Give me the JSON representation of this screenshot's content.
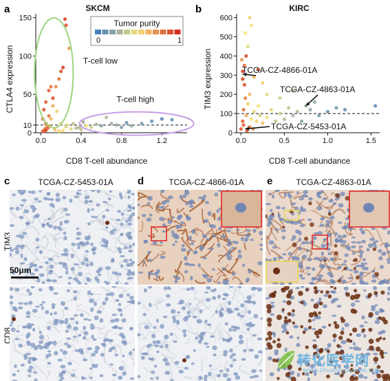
{
  "panels": {
    "a": {
      "letter": "a",
      "title": "SKCM",
      "ylabel": "CTLA4 expression",
      "xlabel": "CD8 T-cell abundance",
      "xticks": [
        "0.0",
        "0.4",
        "0.8",
        "1.2"
      ],
      "yticks": [
        "0",
        "10",
        "50",
        "100",
        "150"
      ],
      "legend_title": "Tumor purity",
      "legend_min": "0",
      "legend_max": "1",
      "label_low": "T-cell low",
      "label_high": "T-cell high"
    },
    "b": {
      "letter": "b",
      "title": "KIRC",
      "ylabel": "TIM3 expression",
      "xlabel": "CD8 T-cell abundance",
      "xticks": [
        "0.0",
        "0.5",
        "1.0",
        "1.5"
      ],
      "yticks": [
        "0",
        "100",
        "200",
        "300",
        "400",
        "500",
        "600"
      ],
      "ann1": "TCGA-CZ-4866-01A",
      "ann2": "TCGA-CZ-4863-01A",
      "ann3": "TCGA-CZ-5453-01A"
    },
    "c": {
      "letter": "c",
      "title": "TCGA-CZ-5453-01A",
      "scale": "50μm"
    },
    "d": {
      "letter": "d",
      "title": "TCGA-CZ-4866-01A"
    },
    "e": {
      "letter": "e",
      "title": "TCGA-CZ-4863-01A"
    },
    "rows": {
      "top": "TIM3",
      "bottom": "CD8"
    }
  },
  "colors": {
    "low": "#4a7fc0",
    "mid": "#f5e27a",
    "high": "#d7301f",
    "green_ellipse": "#9fd47f",
    "purple_ellipse": "#c79ee6"
  },
  "watermark": {
    "text": "转化医学网",
    "sub": "www.zhuanhuayixue.org"
  },
  "chart_data": [
    {
      "type": "scatter",
      "title": "SKCM",
      "xlabel": "CD8 T-cell abundance",
      "ylabel": "CTLA4 expression",
      "xlim": [
        -0.05,
        1.45
      ],
      "ylim": [
        0,
        155
      ],
      "threshold_y": 10,
      "points": [
        [
          0.02,
          2
        ],
        [
          0.04,
          5
        ],
        [
          0.05,
          12
        ],
        [
          0.06,
          8
        ],
        [
          0.03,
          30
        ],
        [
          0.05,
          40
        ],
        [
          0.08,
          22
        ],
        [
          0.1,
          18
        ],
        [
          0.12,
          45
        ],
        [
          0.15,
          60
        ],
        [
          0.18,
          70
        ],
        [
          0.2,
          80
        ],
        [
          0.22,
          85
        ],
        [
          0.24,
          148
        ],
        [
          0.25,
          140
        ],
        [
          0.28,
          110
        ],
        [
          0.1,
          60
        ],
        [
          0.08,
          55
        ],
        [
          0.12,
          35
        ],
        [
          0.16,
          28
        ],
        [
          0.2,
          12
        ],
        [
          0.25,
          8
        ],
        [
          0.3,
          5
        ],
        [
          0.35,
          6
        ],
        [
          0.4,
          4
        ],
        [
          0.45,
          9
        ],
        [
          0.5,
          7
        ],
        [
          0.55,
          11
        ],
        [
          0.6,
          9
        ],
        [
          0.7,
          12
        ],
        [
          0.75,
          10
        ],
        [
          0.8,
          7
        ],
        [
          0.85,
          13
        ],
        [
          0.9,
          9
        ],
        [
          1.0,
          12
        ],
        [
          1.1,
          15
        ],
        [
          1.2,
          18
        ],
        [
          1.3,
          17
        ],
        [
          0.65,
          20
        ],
        [
          0.05,
          3
        ],
        [
          0.07,
          6
        ],
        [
          0.09,
          9
        ],
        [
          0.14,
          4
        ],
        [
          0.18,
          2
        ],
        [
          0.22,
          3
        ],
        [
          0.26,
          10
        ],
        [
          0.32,
          12
        ],
        [
          0.38,
          7
        ],
        [
          0.42,
          14
        ],
        [
          0.02,
          18
        ]
      ],
      "purity": [
        0.9,
        0.8,
        0.85,
        0.7,
        0.9,
        0.85,
        0.8,
        0.6,
        0.9,
        0.75,
        0.8,
        0.9,
        0.95,
        0.95,
        0.9,
        0.7,
        0.8,
        0.85,
        0.65,
        0.55,
        0.5,
        0.4,
        0.45,
        0.3,
        0.35,
        0.5,
        0.4,
        0.3,
        0.2,
        0.25,
        0.2,
        0.15,
        0.1,
        0.2,
        0.15,
        0.1,
        0.05,
        0.1,
        0.3,
        0.95,
        0.85,
        0.7,
        0.6,
        0.55,
        0.5,
        0.45,
        0.35,
        0.3,
        0.25,
        0.8
      ]
    },
    {
      "type": "scatter",
      "title": "KIRC",
      "xlabel": "CD8 T-cell abundance",
      "ylabel": "TIM3 expression",
      "xlim": [
        -0.05,
        1.6
      ],
      "ylim": [
        0,
        620
      ],
      "threshold_y": 100,
      "points": [
        [
          0.0,
          20
        ],
        [
          0.02,
          60
        ],
        [
          0.03,
          120
        ],
        [
          0.05,
          180
        ],
        [
          0.04,
          250
        ],
        [
          0.02,
          320
        ],
        [
          0.01,
          380
        ],
        [
          0.06,
          90
        ],
        [
          0.08,
          150
        ],
        [
          0.1,
          200
        ],
        [
          0.12,
          70
        ],
        [
          0.15,
          110
        ],
        [
          0.18,
          60
        ],
        [
          0.2,
          140
        ],
        [
          0.22,
          90
        ],
        [
          0.25,
          50
        ],
        [
          0.3,
          80
        ],
        [
          0.35,
          120
        ],
        [
          0.4,
          60
        ],
        [
          0.45,
          100
        ],
        [
          0.5,
          70
        ],
        [
          0.55,
          130
        ],
        [
          0.6,
          90
        ],
        [
          0.65,
          110
        ],
        [
          0.7,
          60
        ],
        [
          0.75,
          140
        ],
        [
          0.8,
          120
        ],
        [
          0.9,
          90
        ],
        [
          1.0,
          110
        ],
        [
          1.1,
          130
        ],
        [
          1.2,
          120
        ],
        [
          1.55,
          140
        ],
        [
          0.1,
          600
        ],
        [
          0.12,
          560
        ],
        [
          0.2,
          330
        ],
        [
          0.15,
          290
        ],
        [
          0.25,
          260
        ],
        [
          0.08,
          450
        ],
        [
          0.05,
          520
        ],
        [
          0.03,
          40
        ],
        [
          0.07,
          10
        ],
        [
          0.1,
          30
        ],
        [
          0.14,
          20
        ],
        [
          0.3,
          200
        ],
        [
          0.45,
          180
        ],
        [
          0.6,
          220
        ],
        [
          0.85,
          160
        ],
        [
          0.02,
          280
        ],
        [
          0.04,
          350
        ],
        [
          0.06,
          400
        ]
      ],
      "purity": [
        0.9,
        0.85,
        0.8,
        0.75,
        0.9,
        0.95,
        0.7,
        0.65,
        0.55,
        0.6,
        0.5,
        0.45,
        0.55,
        0.5,
        0.4,
        0.6,
        0.5,
        0.45,
        0.35,
        0.4,
        0.3,
        0.35,
        0.25,
        0.3,
        0.2,
        0.25,
        0.2,
        0.15,
        0.1,
        0.15,
        0.1,
        0.05,
        0.55,
        0.5,
        0.9,
        0.6,
        0.55,
        0.45,
        0.5,
        0.85,
        0.9,
        0.8,
        0.75,
        0.45,
        0.4,
        0.3,
        0.2,
        0.95,
        0.85,
        0.9
      ]
    }
  ]
}
